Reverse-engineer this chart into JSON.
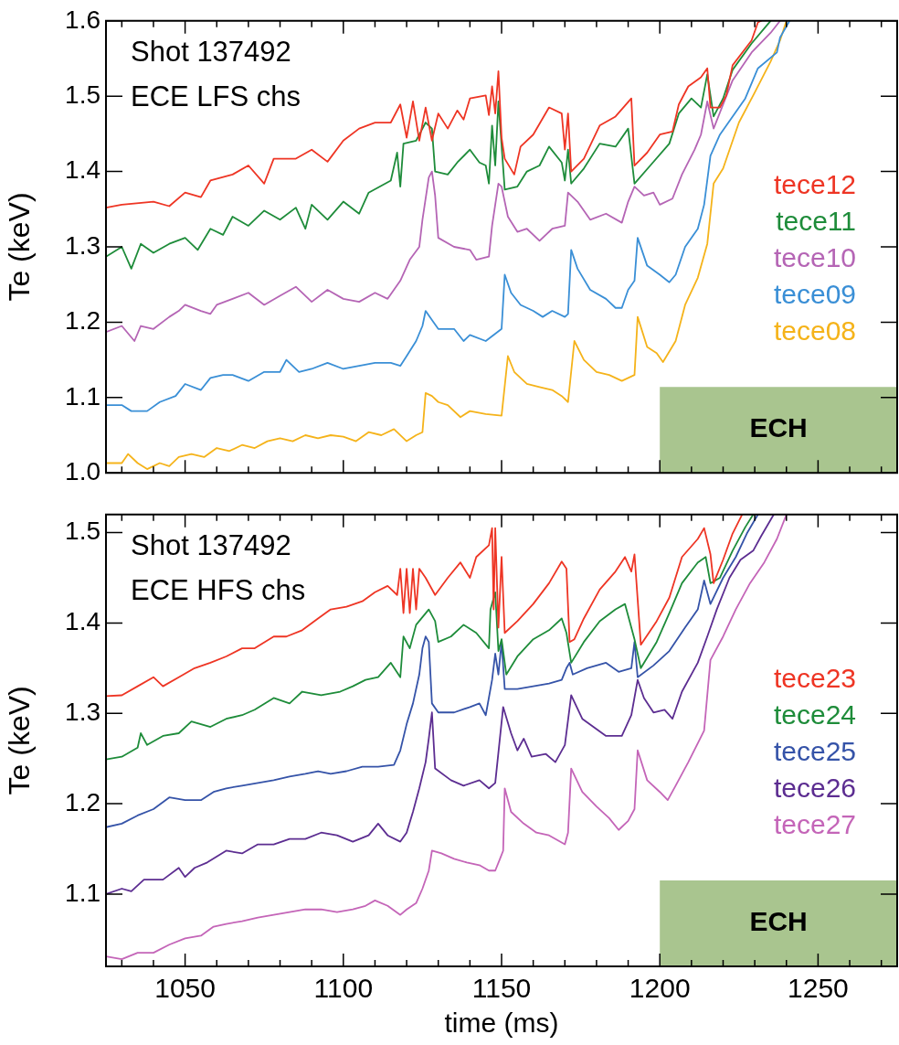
{
  "chart_data": [
    {
      "type": "line",
      "ylabel": "Te (keV)",
      "annotations": [
        "Shot 137492",
        "ECE LFS chs"
      ],
      "xlim": [
        1025,
        1275
      ],
      "ylim": [
        1.0,
        1.6
      ],
      "xticks": [
        {
          "value": 1030,
          "label": null
        },
        {
          "value": 1040,
          "label": null
        },
        1050,
        {
          "value": 1060,
          "label": null
        },
        {
          "value": 1070,
          "label": null
        },
        {
          "value": 1080,
          "label": null
        },
        {
          "value": 1090,
          "label": null
        },
        1100,
        {
          "value": 1110,
          "label": null
        },
        {
          "value": 1120,
          "label": null
        },
        {
          "value": 1130,
          "label": null
        },
        {
          "value": 1140,
          "label": null
        },
        1150,
        {
          "value": 1160,
          "label": null
        },
        {
          "value": 1170,
          "label": null
        },
        {
          "value": 1180,
          "label": null
        },
        {
          "value": 1190,
          "label": null
        },
        1200,
        {
          "value": 1210,
          "label": null
        },
        {
          "value": 1220,
          "label": null
        },
        {
          "value": 1230,
          "label": null
        },
        {
          "value": 1240,
          "label": null
        },
        1250,
        {
          "value": 1260,
          "label": null
        },
        {
          "value": 1270,
          "label": null
        }
      ],
      "yticks": [
        {
          "value": 1.0,
          "label": "1.0"
        },
        1.1,
        1.2,
        1.3,
        1.4,
        1.5,
        1.6
      ],
      "tick_labels": "y",
      "legend": "right",
      "bands": [
        {
          "axis": "x",
          "from": 1200,
          "to": 1275,
          "label": "ECH",
          "color": "#a9c58f"
        }
      ],
      "series": [
        {
          "name": "tece12",
          "color": "#ee3524",
          "x": [
            1025,
            1030,
            1040,
            1045,
            1050,
            1055,
            1058,
            1065,
            1070,
            1075,
            1078,
            1085,
            1090,
            1095,
            1100,
            1105,
            1110,
            1115,
            1118,
            1120,
            1122,
            1124,
            1126,
            1128,
            1130,
            1133,
            1136,
            1138,
            1140,
            1145,
            1146,
            1147,
            1148,
            1149,
            1150,
            1151,
            1154,
            1156,
            1160,
            1165,
            1169,
            1170,
            1171,
            1172,
            1176,
            1181,
            1186,
            1191,
            1192,
            1196,
            1200,
            1204,
            1206,
            1209,
            1213,
            1215,
            1216,
            1219,
            1221,
            1223,
            1229,
            1231,
            1232
          ],
          "values": [
            1.352,
            1.356,
            1.36,
            1.354,
            1.372,
            1.366,
            1.388,
            1.396,
            1.408,
            1.384,
            1.417,
            1.417,
            1.429,
            1.413,
            1.441,
            1.457,
            1.465,
            1.465,
            1.489,
            1.445,
            1.493,
            1.441,
            1.485,
            1.441,
            1.477,
            1.457,
            1.481,
            1.469,
            1.497,
            1.501,
            1.475,
            1.513,
            1.477,
            1.533,
            1.445,
            1.417,
            1.396,
            1.433,
            1.449,
            1.485,
            1.477,
            1.429,
            1.477,
            1.4,
            1.417,
            1.461,
            1.473,
            1.497,
            1.408,
            1.425,
            1.449,
            1.453,
            1.489,
            1.513,
            1.525,
            1.537,
            1.485,
            1.485,
            1.501,
            1.541,
            1.574,
            1.598,
            1.6
          ]
        },
        {
          "name": "tece11",
          "color": "#1e8c3a",
          "x": [
            1025,
            1030,
            1033,
            1036,
            1040,
            1045,
            1050,
            1054,
            1058,
            1062,
            1065,
            1070,
            1075,
            1080,
            1085,
            1088,
            1090,
            1095,
            1100,
            1105,
            1108,
            1115,
            1117,
            1118,
            1119,
            1123,
            1126,
            1128,
            1129,
            1133,
            1136,
            1140,
            1143,
            1145,
            1146,
            1147,
            1148,
            1149,
            1151,
            1155,
            1158,
            1162,
            1165,
            1169,
            1170,
            1171,
            1172,
            1176,
            1181,
            1186,
            1190,
            1192,
            1197,
            1203,
            1206,
            1210,
            1213,
            1215,
            1217,
            1220,
            1223,
            1229,
            1235
          ],
          "values": [
            1.287,
            1.3,
            1.271,
            1.304,
            1.292,
            1.304,
            1.312,
            1.296,
            1.324,
            1.316,
            1.34,
            1.328,
            1.348,
            1.336,
            1.352,
            1.324,
            1.356,
            1.336,
            1.36,
            1.344,
            1.372,
            1.388,
            1.425,
            1.38,
            1.437,
            1.441,
            1.465,
            1.457,
            1.4,
            1.396,
            1.412,
            1.429,
            1.412,
            1.408,
            1.384,
            1.461,
            1.408,
            1.493,
            1.376,
            1.38,
            1.4,
            1.408,
            1.433,
            1.412,
            1.388,
            1.429,
            1.384,
            1.404,
            1.437,
            1.433,
            1.457,
            1.384,
            1.408,
            1.437,
            1.477,
            1.497,
            1.485,
            1.529,
            1.473,
            1.497,
            1.535,
            1.57,
            1.6
          ]
        },
        {
          "name": "tece10",
          "color": "#b565b5",
          "x": [
            1025,
            1030,
            1034,
            1036,
            1040,
            1045,
            1048,
            1050,
            1055,
            1058,
            1060,
            1065,
            1070,
            1075,
            1080,
            1085,
            1090,
            1095,
            1100,
            1105,
            1110,
            1114,
            1118,
            1121,
            1124,
            1125,
            1127,
            1128,
            1129,
            1130,
            1135,
            1140,
            1142,
            1146,
            1147,
            1149,
            1150,
            1152,
            1155,
            1158,
            1162,
            1166,
            1170,
            1171,
            1174,
            1178,
            1183,
            1188,
            1190,
            1192,
            1195,
            1198,
            1200,
            1204,
            1207,
            1211,
            1213,
            1215,
            1217,
            1220,
            1223,
            1229,
            1235,
            1238
          ],
          "values": [
            1.187,
            1.195,
            1.175,
            1.195,
            1.191,
            1.207,
            1.215,
            1.223,
            1.215,
            1.211,
            1.223,
            1.231,
            1.239,
            1.223,
            1.235,
            1.247,
            1.227,
            1.243,
            1.231,
            1.227,
            1.239,
            1.231,
            1.255,
            1.283,
            1.3,
            1.336,
            1.392,
            1.4,
            1.368,
            1.312,
            1.3,
            1.296,
            1.283,
            1.287,
            1.328,
            1.384,
            1.38,
            1.34,
            1.32,
            1.324,
            1.308,
            1.324,
            1.328,
            1.372,
            1.36,
            1.336,
            1.344,
            1.332,
            1.36,
            1.38,
            1.368,
            1.372,
            1.356,
            1.364,
            1.396,
            1.429,
            1.449,
            1.493,
            1.457,
            1.489,
            1.521,
            1.558,
            1.584,
            1.6
          ]
        },
        {
          "name": "tece09",
          "color": "#3a8fd6",
          "x": [
            1025,
            1030,
            1033,
            1038,
            1042,
            1047,
            1050,
            1055,
            1058,
            1062,
            1065,
            1070,
            1075,
            1080,
            1082,
            1086,
            1090,
            1095,
            1100,
            1105,
            1110,
            1115,
            1118,
            1120,
            1123,
            1125,
            1126,
            1128,
            1130,
            1135,
            1138,
            1140,
            1145,
            1150,
            1151,
            1153,
            1156,
            1160,
            1163,
            1166,
            1170,
            1171,
            1172,
            1174,
            1178,
            1183,
            1186,
            1188,
            1190,
            1192,
            1193,
            1196,
            1200,
            1203,
            1205,
            1208,
            1212,
            1214,
            1216,
            1219,
            1223,
            1227,
            1231,
            1237,
            1238,
            1241
          ],
          "values": [
            1.09,
            1.09,
            1.082,
            1.082,
            1.094,
            1.102,
            1.118,
            1.11,
            1.126,
            1.13,
            1.13,
            1.122,
            1.134,
            1.134,
            1.15,
            1.134,
            1.138,
            1.146,
            1.138,
            1.142,
            1.146,
            1.146,
            1.142,
            1.155,
            1.175,
            1.195,
            1.215,
            1.203,
            1.191,
            1.191,
            1.175,
            1.183,
            1.175,
            1.191,
            1.263,
            1.239,
            1.223,
            1.215,
            1.207,
            1.215,
            1.207,
            1.211,
            1.296,
            1.271,
            1.243,
            1.231,
            1.219,
            1.219,
            1.243,
            1.255,
            1.312,
            1.275,
            1.263,
            1.253,
            1.263,
            1.3,
            1.324,
            1.356,
            1.421,
            1.449,
            1.473,
            1.497,
            1.537,
            1.558,
            1.578,
            1.6
          ]
        },
        {
          "name": "tece08",
          "color": "#f5b31a",
          "x": [
            1025,
            1030,
            1032,
            1035,
            1038,
            1042,
            1045,
            1048,
            1052,
            1056,
            1060,
            1064,
            1068,
            1072,
            1076,
            1080,
            1084,
            1088,
            1092,
            1096,
            1100,
            1104,
            1108,
            1112,
            1116,
            1120,
            1123,
            1125,
            1126,
            1128,
            1130,
            1133,
            1137,
            1140,
            1145,
            1150,
            1152,
            1154,
            1158,
            1162,
            1166,
            1169,
            1171,
            1173,
            1176,
            1180,
            1184,
            1188,
            1192,
            1193,
            1196,
            1199,
            1201,
            1205,
            1208,
            1212,
            1215,
            1217,
            1220,
            1225,
            1230,
            1235,
            1238,
            1240
          ],
          "values": [
            1.013,
            1.013,
            1.025,
            1.013,
            1.005,
            1.013,
            1.009,
            1.021,
            1.025,
            1.021,
            1.033,
            1.029,
            1.037,
            1.033,
            1.042,
            1.046,
            1.042,
            1.05,
            1.046,
            1.05,
            1.048,
            1.042,
            1.054,
            1.05,
            1.058,
            1.042,
            1.05,
            1.054,
            1.106,
            1.102,
            1.094,
            1.09,
            1.074,
            1.082,
            1.078,
            1.076,
            1.155,
            1.134,
            1.118,
            1.114,
            1.11,
            1.102,
            1.094,
            1.175,
            1.15,
            1.134,
            1.13,
            1.122,
            1.13,
            1.207,
            1.167,
            1.159,
            1.147,
            1.175,
            1.223,
            1.259,
            1.304,
            1.384,
            1.404,
            1.465,
            1.505,
            1.546,
            1.574,
            1.6
          ]
        }
      ]
    },
    {
      "type": "line",
      "ylabel": "Te (keV)",
      "xlabel": "time (ms)",
      "annotations": [
        "Shot 137492",
        "ECE HFS chs"
      ],
      "xlim": [
        1025,
        1275
      ],
      "ylim": [
        1.02,
        1.52
      ],
      "xticks": [
        {
          "value": 1030,
          "label": null
        },
        {
          "value": 1040,
          "label": null
        },
        1050,
        {
          "value": 1060,
          "label": null
        },
        {
          "value": 1070,
          "label": null
        },
        {
          "value": 1080,
          "label": null
        },
        {
          "value": 1090,
          "label": null
        },
        1100,
        {
          "value": 1110,
          "label": null
        },
        {
          "value": 1120,
          "label": null
        },
        {
          "value": 1130,
          "label": null
        },
        {
          "value": 1140,
          "label": null
        },
        1150,
        {
          "value": 1160,
          "label": null
        },
        {
          "value": 1170,
          "label": null
        },
        {
          "value": 1180,
          "label": null
        },
        {
          "value": 1190,
          "label": null
        },
        1200,
        {
          "value": 1210,
          "label": null
        },
        {
          "value": 1220,
          "label": null
        },
        {
          "value": 1230,
          "label": null
        },
        {
          "value": 1240,
          "label": null
        },
        1250,
        {
          "value": 1260,
          "label": null
        },
        {
          "value": 1270,
          "label": null
        }
      ],
      "yticks": [
        1.1,
        1.2,
        1.3,
        1.4,
        1.5
      ],
      "legend": "right",
      "bands": [
        {
          "axis": "x",
          "from": 1200,
          "to": 1275,
          "label": "ECH",
          "color": "#a9c58f"
        }
      ],
      "series": [
        {
          "name": "tece23",
          "color": "#ee3524",
          "x": [
            1025,
            1030,
            1035,
            1040,
            1043,
            1048,
            1053,
            1058,
            1063,
            1068,
            1072,
            1078,
            1082,
            1087,
            1092,
            1096,
            1101,
            1106,
            1110,
            1114,
            1117,
            1118,
            1119,
            1120,
            1121,
            1122,
            1123,
            1124,
            1126,
            1129,
            1133,
            1137,
            1140,
            1142,
            1146,
            1147,
            1147.5,
            1148,
            1149,
            1150,
            1151,
            1155,
            1160,
            1165,
            1169,
            1170.5,
            1171.5,
            1173,
            1176,
            1181,
            1186,
            1189,
            1191,
            1192,
            1194,
            1199,
            1203,
            1207,
            1212,
            1214,
            1216,
            1217,
            1220,
            1223,
            1226
          ],
          "values": [
            1.319,
            1.32,
            1.33,
            1.34,
            1.33,
            1.34,
            1.35,
            1.356,
            1.363,
            1.372,
            1.372,
            1.385,
            1.385,
            1.392,
            1.405,
            1.415,
            1.418,
            1.424,
            1.434,
            1.441,
            1.431,
            1.46,
            1.411,
            1.46,
            1.411,
            1.46,
            1.415,
            1.46,
            1.45,
            1.431,
            1.45,
            1.467,
            1.45,
            1.473,
            1.486,
            1.505,
            1.415,
            1.505,
            1.395,
            1.473,
            1.389,
            1.402,
            1.421,
            1.444,
            1.468,
            1.46,
            1.379,
            1.382,
            1.405,
            1.437,
            1.457,
            1.473,
            1.457,
            1.476,
            1.376,
            1.402,
            1.428,
            1.473,
            1.493,
            1.505,
            1.476,
            1.444,
            1.47,
            1.499,
            1.52
          ]
        },
        {
          "name": "tece24",
          "color": "#1e8c3a",
          "x": [
            1025,
            1030,
            1035,
            1036,
            1038,
            1043,
            1048,
            1052,
            1058,
            1063,
            1068,
            1072,
            1078,
            1083,
            1087,
            1093,
            1099,
            1103,
            1107,
            1111,
            1115,
            1118,
            1119,
            1121,
            1123,
            1127,
            1129,
            1130,
            1134,
            1138,
            1142,
            1146,
            1146.5,
            1148,
            1149,
            1150,
            1151.5,
            1155,
            1160,
            1165,
            1169,
            1170.5,
            1172,
            1176,
            1181,
            1186,
            1189,
            1192,
            1194,
            1199,
            1203,
            1207,
            1212,
            1214.5,
            1216,
            1219,
            1223,
            1227,
            1229.5
          ],
          "values": [
            1.249,
            1.252,
            1.262,
            1.278,
            1.265,
            1.275,
            1.278,
            1.291,
            1.285,
            1.294,
            1.298,
            1.304,
            1.317,
            1.311,
            1.324,
            1.32,
            1.324,
            1.33,
            1.337,
            1.34,
            1.356,
            1.34,
            1.385,
            1.372,
            1.398,
            1.415,
            1.402,
            1.379,
            1.385,
            1.398,
            1.389,
            1.372,
            1.415,
            1.434,
            1.369,
            1.382,
            1.343,
            1.363,
            1.382,
            1.392,
            1.405,
            1.389,
            1.356,
            1.379,
            1.402,
            1.415,
            1.421,
            1.382,
            1.35,
            1.379,
            1.411,
            1.444,
            1.467,
            1.473,
            1.444,
            1.45,
            1.48,
            1.506,
            1.52
          ]
        },
        {
          "name": "tece25",
          "color": "#3553a8",
          "x": [
            1025,
            1030,
            1035,
            1040,
            1045,
            1050,
            1055,
            1059,
            1063,
            1068,
            1073,
            1078,
            1083,
            1088,
            1092,
            1096,
            1101,
            1106,
            1111,
            1116,
            1118,
            1120,
            1122,
            1124,
            1125,
            1126,
            1127,
            1128,
            1130,
            1135,
            1140,
            1143,
            1145,
            1147,
            1148,
            1149,
            1150,
            1151,
            1155,
            1160,
            1165,
            1169,
            1170.5,
            1171.5,
            1172.5,
            1177,
            1183,
            1187,
            1191,
            1192,
            1193,
            1198,
            1203,
            1208,
            1212,
            1214,
            1216,
            1220,
            1224,
            1227.5,
            1231
          ],
          "values": [
            1.174,
            1.178,
            1.187,
            1.194,
            1.207,
            1.204,
            1.204,
            1.213,
            1.217,
            1.22,
            1.223,
            1.226,
            1.23,
            1.233,
            1.236,
            1.233,
            1.236,
            1.241,
            1.241,
            1.243,
            1.259,
            1.288,
            1.311,
            1.343,
            1.372,
            1.385,
            1.379,
            1.311,
            1.301,
            1.301,
            1.307,
            1.311,
            1.298,
            1.337,
            1.366,
            1.343,
            1.379,
            1.327,
            1.327,
            1.33,
            1.333,
            1.337,
            1.35,
            1.356,
            1.343,
            1.35,
            1.356,
            1.346,
            1.35,
            1.379,
            1.34,
            1.353,
            1.369,
            1.395,
            1.415,
            1.447,
            1.421,
            1.45,
            1.473,
            1.499,
            1.52
          ]
        },
        {
          "name": "tece26",
          "color": "#5c2d91",
          "x": [
            1025,
            1030,
            1033,
            1037,
            1043,
            1048,
            1050,
            1053,
            1057,
            1063,
            1068,
            1073,
            1078,
            1083,
            1088,
            1093,
            1098,
            1103,
            1108,
            1111,
            1114,
            1118,
            1120,
            1122,
            1124,
            1126,
            1127,
            1128,
            1129,
            1134,
            1138,
            1143,
            1146,
            1148,
            1150.5,
            1153,
            1155,
            1157,
            1159.5,
            1164,
            1167,
            1170,
            1172,
            1175.5,
            1179,
            1183,
            1188,
            1191,
            1193,
            1195,
            1198,
            1201.5,
            1204,
            1207,
            1212,
            1215,
            1218,
            1222,
            1225.5,
            1229.5,
            1232,
            1236
          ],
          "values": [
            1.1,
            1.106,
            1.103,
            1.116,
            1.116,
            1.129,
            1.119,
            1.129,
            1.135,
            1.148,
            1.145,
            1.155,
            1.155,
            1.161,
            1.161,
            1.168,
            1.165,
            1.158,
            1.165,
            1.178,
            1.165,
            1.158,
            1.168,
            1.191,
            1.217,
            1.246,
            1.272,
            1.301,
            1.239,
            1.226,
            1.22,
            1.226,
            1.217,
            1.223,
            1.307,
            1.278,
            1.259,
            1.272,
            1.252,
            1.255,
            1.246,
            1.265,
            1.32,
            1.294,
            1.285,
            1.275,
            1.275,
            1.298,
            1.337,
            1.317,
            1.301,
            1.304,
            1.294,
            1.324,
            1.356,
            1.385,
            1.415,
            1.45,
            1.47,
            1.48,
            1.496,
            1.52
          ]
        },
        {
          "name": "tece27",
          "color": "#c465b8",
          "x": [
            1025,
            1030,
            1035,
            1040,
            1045,
            1050,
            1055,
            1059,
            1063,
            1068,
            1073,
            1078,
            1083,
            1088,
            1093,
            1098,
            1103,
            1107,
            1110,
            1114,
            1118,
            1120,
            1123,
            1125,
            1127,
            1128,
            1131,
            1135,
            1139,
            1143,
            1146,
            1148,
            1149.5,
            1150.5,
            1151,
            1153,
            1157,
            1161,
            1165,
            1170,
            1171,
            1172,
            1175.5,
            1180,
            1184,
            1187,
            1190,
            1192,
            1193,
            1196,
            1200,
            1202.5,
            1205,
            1209,
            1214,
            1216,
            1220,
            1224,
            1228.5,
            1233,
            1237,
            1240
          ],
          "values": [
            1.031,
            1.028,
            1.035,
            1.035,
            1.044,
            1.051,
            1.054,
            1.064,
            1.067,
            1.07,
            1.074,
            1.077,
            1.08,
            1.083,
            1.083,
            1.08,
            1.083,
            1.087,
            1.093,
            1.087,
            1.077,
            1.083,
            1.09,
            1.106,
            1.126,
            1.148,
            1.145,
            1.139,
            1.135,
            1.132,
            1.126,
            1.126,
            1.139,
            1.148,
            1.217,
            1.191,
            1.178,
            1.168,
            1.165,
            1.155,
            1.168,
            1.239,
            1.213,
            1.197,
            1.184,
            1.171,
            1.181,
            1.194,
            1.259,
            1.226,
            1.213,
            1.204,
            1.22,
            1.246,
            1.281,
            1.359,
            1.385,
            1.415,
            1.444,
            1.467,
            1.493,
            1.52
          ]
        }
      ]
    }
  ]
}
